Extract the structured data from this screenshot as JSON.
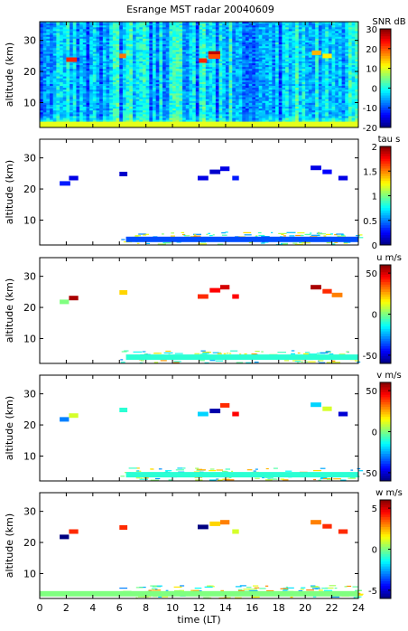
{
  "chart_data": [
    {
      "type": "heatmap",
      "title": "Esrange MST radar 20040609",
      "ylabel": "altitude (km)",
      "xlim": [
        0,
        24
      ],
      "ylim": [
        2,
        36
      ],
      "yticks": [
        10,
        20,
        30
      ],
      "colorbar_label": "SNR dB",
      "colorbar_range": [
        -20,
        30
      ],
      "colorbar_ticks": [
        -20,
        -10,
        0,
        10,
        20,
        30
      ],
      "events": [
        {
          "t0": 2.0,
          "t1": 2.8,
          "alt": 23.8,
          "value": 22
        },
        {
          "t0": 6.0,
          "t1": 6.5,
          "alt": 25.0,
          "value": 18
        },
        {
          "t0": 12.0,
          "t1": 12.6,
          "alt": 23.5,
          "value": 22
        },
        {
          "t0": 12.7,
          "t1": 13.6,
          "alt": 25.8,
          "value": 27
        },
        {
          "t0": 12.7,
          "t1": 13.6,
          "alt": 24.8,
          "value": 20
        },
        {
          "t0": 20.5,
          "t1": 21.2,
          "alt": 26.0,
          "value": 15
        },
        {
          "t0": 21.3,
          "t1": 22.0,
          "alt": 25.0,
          "value": 12
        },
        {
          "t0": 0.0,
          "t1": 24.0,
          "alt": 3.0,
          "value": 10
        }
      ]
    },
    {
      "type": "heatmap",
      "ylabel": "altitude (km)",
      "xlim": [
        0,
        24
      ],
      "ylim": [
        2,
        36
      ],
      "yticks": [
        10,
        20,
        30
      ],
      "colorbar_label": "tau s",
      "colorbar_range": [
        0,
        2
      ],
      "colorbar_ticks": [
        0,
        0.5,
        1,
        1.5,
        2
      ],
      "events": [
        {
          "t0": 1.5,
          "t1": 2.3,
          "alt": 21.8,
          "value": 0.3
        },
        {
          "t0": 2.2,
          "t1": 2.9,
          "alt": 23.5,
          "value": 0.2
        },
        {
          "t0": 6.0,
          "t1": 6.6,
          "alt": 24.8,
          "value": 0.15
        },
        {
          "t0": 11.9,
          "t1": 12.7,
          "alt": 23.5,
          "value": 0.2
        },
        {
          "t0": 12.8,
          "t1": 13.6,
          "alt": 25.5,
          "value": 0.15
        },
        {
          "t0": 13.6,
          "t1": 14.3,
          "alt": 26.5,
          "value": 0.2
        },
        {
          "t0": 14.5,
          "t1": 15.0,
          "alt": 23.5,
          "value": 0.3
        },
        {
          "t0": 20.4,
          "t1": 21.2,
          "alt": 26.8,
          "value": 0.2
        },
        {
          "t0": 21.3,
          "t1": 22.0,
          "alt": 25.5,
          "value": 0.25
        },
        {
          "t0": 22.5,
          "t1": 23.2,
          "alt": 23.5,
          "value": 0.2
        },
        {
          "t0": 6.5,
          "t1": 24.0,
          "alt": 3.8,
          "value": 0.4
        }
      ]
    },
    {
      "type": "heatmap",
      "ylabel": "altitude (km)",
      "xlim": [
        0,
        24
      ],
      "ylim": [
        2,
        36
      ],
      "yticks": [
        10,
        20,
        30
      ],
      "colorbar_label": "u m/s",
      "colorbar_range": [
        -60,
        60
      ],
      "colorbar_ticks": [
        -50,
        0,
        50
      ],
      "events": [
        {
          "t0": 1.5,
          "t1": 2.2,
          "alt": 21.8,
          "value": 0
        },
        {
          "t0": 2.2,
          "t1": 2.9,
          "alt": 23.0,
          "value": 55
        },
        {
          "t0": 6.0,
          "t1": 6.6,
          "alt": 24.8,
          "value": 20
        },
        {
          "t0": 11.9,
          "t1": 12.7,
          "alt": 23.5,
          "value": 40
        },
        {
          "t0": 12.8,
          "t1": 13.6,
          "alt": 25.5,
          "value": 45
        },
        {
          "t0": 13.6,
          "t1": 14.3,
          "alt": 26.5,
          "value": 50
        },
        {
          "t0": 14.5,
          "t1": 15.0,
          "alt": 23.5,
          "value": 45
        },
        {
          "t0": 20.4,
          "t1": 21.2,
          "alt": 26.5,
          "value": 55
        },
        {
          "t0": 21.3,
          "t1": 22.0,
          "alt": 25.2,
          "value": 40
        },
        {
          "t0": 22.0,
          "t1": 22.8,
          "alt": 24.0,
          "value": 30
        },
        {
          "t0": 6.5,
          "t1": 24.0,
          "alt": 4.0,
          "value": -10
        }
      ]
    },
    {
      "type": "heatmap",
      "ylabel": "altitude (km)",
      "xlim": [
        0,
        24
      ],
      "ylim": [
        2,
        36
      ],
      "yticks": [
        10,
        20,
        30
      ],
      "colorbar_label": "v m/s",
      "colorbar_range": [
        -60,
        60
      ],
      "colorbar_ticks": [
        -50,
        0,
        50
      ],
      "events": [
        {
          "t0": 1.5,
          "t1": 2.2,
          "alt": 21.8,
          "value": -30
        },
        {
          "t0": 2.2,
          "t1": 2.9,
          "alt": 23.0,
          "value": 10
        },
        {
          "t0": 6.0,
          "t1": 6.6,
          "alt": 24.8,
          "value": -10
        },
        {
          "t0": 11.9,
          "t1": 12.7,
          "alt": 23.5,
          "value": -20
        },
        {
          "t0": 12.8,
          "t1": 13.6,
          "alt": 24.5,
          "value": -55
        },
        {
          "t0": 13.6,
          "t1": 14.3,
          "alt": 26.3,
          "value": 40
        },
        {
          "t0": 14.5,
          "t1": 15.0,
          "alt": 23.5,
          "value": 45
        },
        {
          "t0": 20.4,
          "t1": 21.2,
          "alt": 26.5,
          "value": -20
        },
        {
          "t0": 21.3,
          "t1": 22.0,
          "alt": 25.2,
          "value": 10
        },
        {
          "t0": 22.5,
          "t1": 23.2,
          "alt": 23.5,
          "value": -50
        },
        {
          "t0": 6.5,
          "t1": 24.0,
          "alt": 4.0,
          "value": -10
        }
      ]
    },
    {
      "type": "heatmap",
      "ylabel": "altitude (km)",
      "xlabel": "time (LT)",
      "xlim": [
        0,
        24
      ],
      "ylim": [
        2,
        36
      ],
      "yticks": [
        10,
        20,
        30
      ],
      "xticks": [
        0,
        2,
        4,
        6,
        8,
        10,
        12,
        14,
        16,
        18,
        20,
        22,
        24
      ],
      "colorbar_label": "w m/s",
      "colorbar_range": [
        -6,
        6
      ],
      "colorbar_ticks": [
        -5,
        0,
        5
      ],
      "events": [
        {
          "t0": 1.5,
          "t1": 2.2,
          "alt": 21.8,
          "value": -6
        },
        {
          "t0": 2.2,
          "t1": 2.9,
          "alt": 23.5,
          "value": 4
        },
        {
          "t0": 6.0,
          "t1": 6.6,
          "alt": 24.8,
          "value": 4
        },
        {
          "t0": 11.9,
          "t1": 12.7,
          "alt": 25.0,
          "value": -6
        },
        {
          "t0": 12.8,
          "t1": 13.6,
          "alt": 26.0,
          "value": 2
        },
        {
          "t0": 13.6,
          "t1": 14.3,
          "alt": 26.5,
          "value": 3
        },
        {
          "t0": 14.5,
          "t1": 15.0,
          "alt": 23.5,
          "value": 1
        },
        {
          "t0": 20.4,
          "t1": 21.2,
          "alt": 26.5,
          "value": 3
        },
        {
          "t0": 21.3,
          "t1": 22.0,
          "alt": 25.2,
          "value": 4
        },
        {
          "t0": 22.5,
          "t1": 23.2,
          "alt": 23.5,
          "value": 4
        },
        {
          "t0": 0.0,
          "t1": 24.0,
          "alt": 3.5,
          "value": 0
        }
      ]
    }
  ]
}
